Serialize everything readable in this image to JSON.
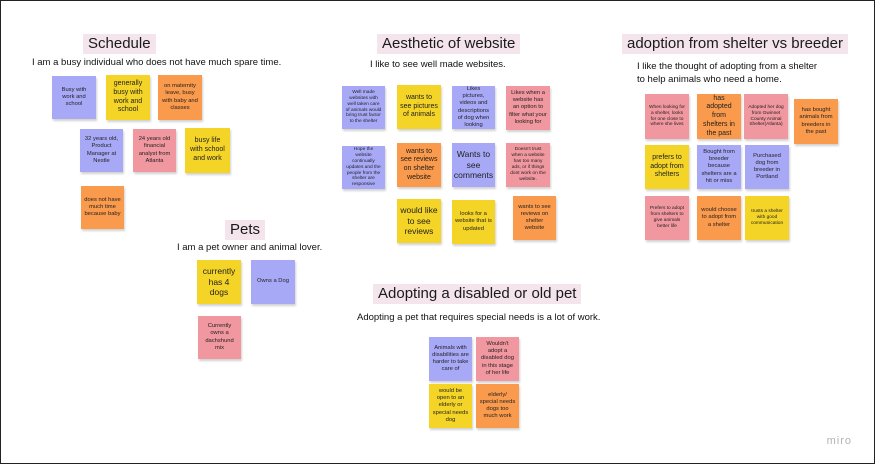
{
  "sections": {
    "schedule": {
      "title": "Schedule",
      "subtitle": "I am a busy individual who does not have much spare time.",
      "notes": [
        "Busy with work and school",
        "generally busy with work and school",
        "on maternity leave, busy with baby and classes",
        "32 years old, Product Manager at Nestle",
        "24 years old financial analyst from Atlanta",
        "busy life with school and work",
        "does not have much time because baby"
      ]
    },
    "pets": {
      "title": "Pets",
      "subtitle": "I am a pet owner and animal lover.",
      "notes": [
        "currently has 4 dogs",
        "Owns a Dog",
        "Currently owns a dachshund mix"
      ]
    },
    "aesthetic": {
      "title": "Aesthetic of website",
      "subtitle": "I like to see well made websites.",
      "notes": [
        "Well made websites with well taken care of animals would bring trust factor to the shelter",
        "wants to see pictures of animals",
        "Likes pictures, videos and descriptions of dog when looking",
        "Likes when a website has an option to filter what your looking for",
        "Hope the website continually updates and the people from the shelter are responsive",
        "wants to see reviews on shelter website",
        "Wants to see comments",
        "Doesn't trust when a website has too many ads, or if things dont work on the website.",
        "would like to see reviews",
        "looks for a website that is updated",
        "wants to see reviews on shelter website"
      ]
    },
    "disabled": {
      "title": "Adopting a disabled or old pet",
      "subtitle": "Adopting a pet that requires special needs is a lot of work.",
      "notes": [
        "Animals with disabilities are harder to take care of",
        "Wouldn't adopt a disabled dog in this stage of her life",
        "would be open to an elderly or special needs dog",
        "elderly/ special needs dogs too much work"
      ]
    },
    "adoption": {
      "title": "adoption from shelter vs breeder",
      "subtitle_line1": "I like the thought of adopting from a shelter",
      "subtitle_line2": "to help animals who need a home.",
      "notes": [
        "When looking for a shelter, looks for one close to where she lives",
        "has adopted from shelters in the past",
        "Adopted her dog from Gwinnet County Animal Shelter(Atlanta)",
        "has bought animals from breeders in the past",
        "prefers to adopt from shelters",
        "Bought from breeder because shelters are a hit or miss",
        "Purchased dog from breeder in Portland",
        "Prefers to adopt from shelters to give animals better life",
        "would choose to adopt from a shelter",
        "trusts a shelter with good communication"
      ]
    }
  },
  "brand": "miro"
}
